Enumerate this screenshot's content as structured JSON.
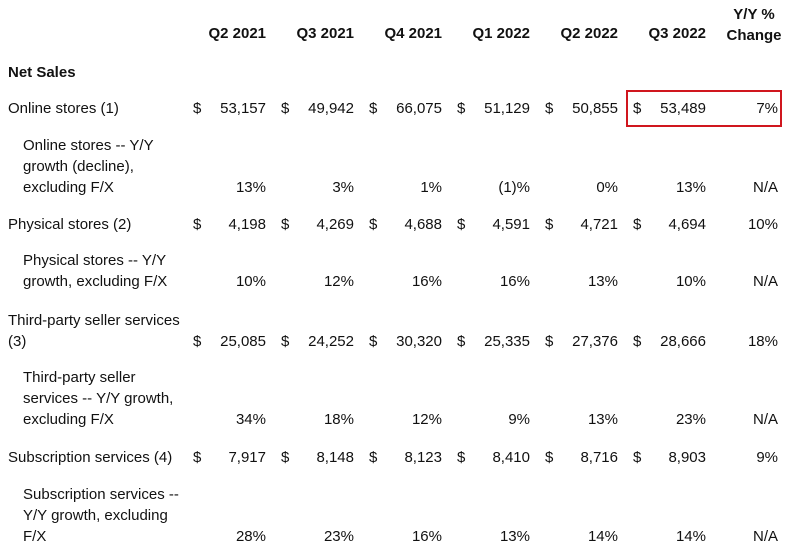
{
  "header": {
    "columns": [
      "Q2 2021",
      "Q3 2021",
      "Q4 2021",
      "Q1 2022",
      "Q2 2022",
      "Q3 2022",
      "Y/Y % Change"
    ]
  },
  "section": {
    "title": "Net Sales"
  },
  "rows": [
    {
      "label": "Online stores (1)",
      "cells": [
        {
          "currency": "$",
          "amount": "53,157"
        },
        {
          "currency": "$",
          "amount": "49,942"
        },
        {
          "currency": "$",
          "amount": "66,075"
        },
        {
          "currency": "$",
          "amount": "51,129"
        },
        {
          "currency": "$",
          "amount": "50,855"
        },
        {
          "currency": "$",
          "amount": "53,489"
        },
        "7%"
      ]
    },
    {
      "label": "Online stores -- Y/Y growth (decline), excluding F/X",
      "cells": [
        "13%",
        "3%",
        "1%",
        "(1)%",
        "0%",
        "13%",
        "N/A"
      ]
    },
    {
      "label": "Physical stores (2)",
      "cells": [
        {
          "currency": "$",
          "amount": "4,198"
        },
        {
          "currency": "$",
          "amount": "4,269"
        },
        {
          "currency": "$",
          "amount": "4,688"
        },
        {
          "currency": "$",
          "amount": "4,591"
        },
        {
          "currency": "$",
          "amount": "4,721"
        },
        {
          "currency": "$",
          "amount": "4,694"
        },
        "10%"
      ]
    },
    {
      "label": "Physical stores -- Y/Y growth, excluding F/X",
      "cells": [
        "10%",
        "12%",
        "16%",
        "16%",
        "13%",
        "10%",
        "N/A"
      ]
    },
    {
      "label": "Third-party seller services (3)",
      "cells": [
        {
          "currency": "$",
          "amount": "25,085"
        },
        {
          "currency": "$",
          "amount": "24,252"
        },
        {
          "currency": "$",
          "amount": "30,320"
        },
        {
          "currency": "$",
          "amount": "25,335"
        },
        {
          "currency": "$",
          "amount": "27,376"
        },
        {
          "currency": "$",
          "amount": "28,666"
        },
        "18%"
      ]
    },
    {
      "label": "Third-party seller services -- Y/Y growth, excluding F/X",
      "cells": [
        "34%",
        "18%",
        "12%",
        "9%",
        "13%",
        "23%",
        "N/A"
      ]
    },
    {
      "label": "Subscription services (4)",
      "cells": [
        {
          "currency": "$",
          "amount": "7,917"
        },
        {
          "currency": "$",
          "amount": "8,148"
        },
        {
          "currency": "$",
          "amount": "8,123"
        },
        {
          "currency": "$",
          "amount": "8,410"
        },
        {
          "currency": "$",
          "amount": "8,716"
        },
        {
          "currency": "$",
          "amount": "8,903"
        },
        "9%"
      ]
    },
    {
      "label": "Subscription services -- Y/Y growth, excluding F/X",
      "cells": [
        "28%",
        "23%",
        "16%",
        "13%",
        "14%",
        "14%",
        "N/A"
      ]
    }
  ]
}
